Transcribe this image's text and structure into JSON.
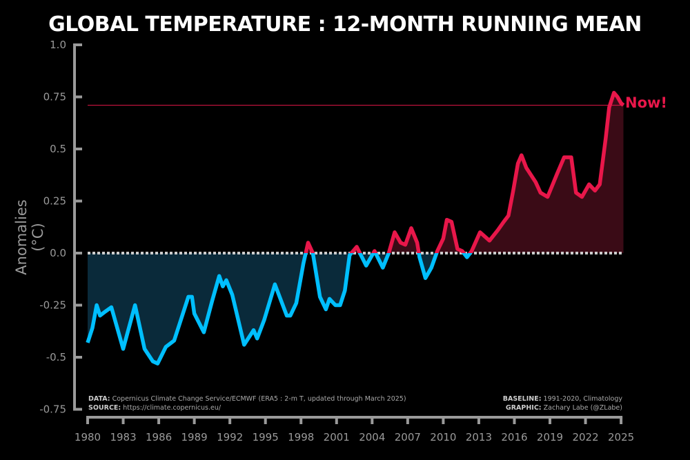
{
  "chart_data": {
    "type": "line",
    "title": "GLOBAL TEMPERATURE : 12-MONTH RUNNING MEAN",
    "ylabel": "Anomalies (°C)",
    "xlabel": "",
    "xlim": [
      1980,
      2025.25
    ],
    "ylim": [
      -0.75,
      1.0
    ],
    "yticks": [
      "1.0",
      "0.75",
      "0.5",
      "0.25",
      "0.0",
      "-0.25",
      "-0.5",
      "-0.75"
    ],
    "ytick_values": [
      1.0,
      0.75,
      0.5,
      0.25,
      0.0,
      -0.25,
      -0.5,
      -0.75
    ],
    "xticks": [
      "1980",
      "1983",
      "1986",
      "1989",
      "1992",
      "1995",
      "1998",
      "2001",
      "2004",
      "2007",
      "2010",
      "2013",
      "2016",
      "2019",
      "2022",
      "2025"
    ],
    "grid": false,
    "reference_line": {
      "value": 0.71,
      "label": "Now!",
      "color": "#e8174a"
    },
    "zero_line": {
      "value": 0.0,
      "style": "dotted",
      "color": "#cccccc"
    },
    "colors": {
      "above_zero": "#e8174a",
      "below_zero": "#00bfff",
      "above_fill": "#3a0b16",
      "below_fill": "#0a2a3a",
      "axis": "#9a9a9a"
    },
    "x": [
      1980.0,
      1980.4,
      1980.76,
      1981.05,
      1981.5,
      1982.0,
      1983.0,
      1984.0,
      1984.8,
      1985.5,
      1985.9,
      1986.6,
      1987.3,
      1988.5,
      1988.8,
      1989.0,
      1989.8,
      1990.5,
      1991.1,
      1991.4,
      1991.7,
      1992.2,
      1993.2,
      1994.0,
      1994.3,
      1994.9,
      1995.8,
      1996.8,
      1997.1,
      1997.6,
      1998.2,
      1998.6,
      1999.0,
      1999.6,
      2000.1,
      2000.4,
      2000.9,
      2001.3,
      2001.7,
      2002.1,
      2002.7,
      2003.5,
      2004.2,
      2004.9,
      2005.4,
      2005.9,
      2006.4,
      2006.8,
      2007.3,
      2007.8,
      2008.0,
      2008.5,
      2009.0,
      2009.5,
      2010.0,
      2010.3,
      2010.7,
      2011.2,
      2011.6,
      2012.0,
      2012.4,
      2013.1,
      2013.5,
      2013.9,
      2014.6,
      2015.1,
      2015.5,
      2015.9,
      2016.3,
      2016.6,
      2017.0,
      2017.8,
      2018.2,
      2018.8,
      2019.6,
      2020.2,
      2020.8,
      2021.2,
      2021.7,
      2022.3,
      2022.8,
      2023.2,
      2023.7,
      2024.0,
      2024.4,
      2024.7,
      2025.0,
      2025.2
    ],
    "values": [
      -0.43,
      -0.36,
      -0.25,
      -0.3,
      -0.28,
      -0.26,
      -0.46,
      -0.25,
      -0.46,
      -0.52,
      -0.53,
      -0.45,
      -0.42,
      -0.21,
      -0.21,
      -0.29,
      -0.38,
      -0.23,
      -0.11,
      -0.16,
      -0.13,
      -0.2,
      -0.44,
      -0.37,
      -0.41,
      -0.32,
      -0.15,
      -0.3,
      -0.3,
      -0.24,
      -0.05,
      0.05,
      0.0,
      -0.21,
      -0.27,
      -0.22,
      -0.25,
      -0.25,
      -0.18,
      -0.01,
      0.03,
      -0.06,
      0.01,
      -0.07,
      0.0,
      0.1,
      0.05,
      0.04,
      0.12,
      0.05,
      -0.02,
      -0.12,
      -0.07,
      0.01,
      0.07,
      0.16,
      0.15,
      0.02,
      0.01,
      -0.02,
      0.01,
      0.1,
      0.08,
      0.06,
      0.11,
      0.15,
      0.18,
      0.3,
      0.43,
      0.47,
      0.41,
      0.34,
      0.29,
      0.27,
      0.38,
      0.46,
      0.46,
      0.29,
      0.27,
      0.33,
      0.3,
      0.33,
      0.55,
      0.7,
      0.77,
      0.75,
      0.72,
      0.71
    ]
  },
  "footer": {
    "data_label": "DATA:",
    "data_text": "Copernicus Climate Change Service/ECMWF (ERA5 : 2-m T, updated through March 2025)",
    "source_label": "SOURCE:",
    "source_text": "https://climate.copernicus.eu/",
    "baseline_label": "BASELINE:",
    "baseline_text": "1991-2020, Climatology",
    "graphic_label": "GRAPHIC:",
    "graphic_text": "Zachary Labe (@ZLabe)"
  }
}
